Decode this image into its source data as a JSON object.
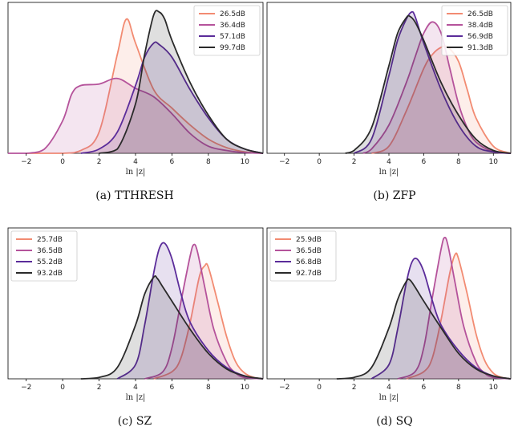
{
  "chart_data": [
    {
      "type": "area",
      "caption": "(a)  TTHRESH",
      "xlabel": "ln |z|",
      "xlim": [
        -3,
        11
      ],
      "xticks": [
        -2,
        0,
        2,
        4,
        6,
        8,
        10
      ],
      "legend_position": "top-right",
      "grid": false,
      "series": [
        {
          "name": "26.5dB",
          "color": "#f28b72",
          "x": [
            -2,
            0,
            1,
            2,
            3,
            3.5,
            4,
            5,
            6,
            7,
            8,
            9,
            10,
            11
          ],
          "y": [
            0.0,
            0.0,
            0.02,
            0.15,
            0.7,
            0.95,
            0.78,
            0.45,
            0.32,
            0.2,
            0.1,
            0.04,
            0.01,
            0.0
          ]
        },
        {
          "name": "36.4dB",
          "color": "#b5539b",
          "x": [
            -3,
            -2,
            -1,
            0,
            0.5,
            1,
            2,
            3,
            4,
            5,
            6,
            7,
            8,
            9,
            10,
            11
          ],
          "y": [
            0.0,
            0.0,
            0.03,
            0.23,
            0.42,
            0.48,
            0.49,
            0.53,
            0.46,
            0.4,
            0.28,
            0.14,
            0.05,
            0.02,
            0.005,
            0.0
          ]
        },
        {
          "name": "57.1dB",
          "color": "#5b2c9a",
          "x": [
            1,
            2,
            3,
            4,
            4.5,
            5,
            5.3,
            6,
            7,
            8,
            9,
            10,
            11
          ],
          "y": [
            0.0,
            0.03,
            0.15,
            0.48,
            0.68,
            0.78,
            0.77,
            0.68,
            0.45,
            0.25,
            0.1,
            0.03,
            0.0
          ]
        },
        {
          "name": "99.7dB",
          "color": "#2a2a2a",
          "x": [
            2,
            3,
            4,
            4.5,
            5,
            5.3,
            5.6,
            6,
            7,
            8,
            9,
            10,
            11
          ],
          "y": [
            0.0,
            0.03,
            0.35,
            0.7,
            0.98,
            1.0,
            0.95,
            0.8,
            0.5,
            0.27,
            0.1,
            0.03,
            0.0
          ]
        }
      ]
    },
    {
      "type": "area",
      "caption": "(b)  ZFP",
      "xlabel": "ln |z|",
      "xlim": [
        -3,
        11
      ],
      "xticks": [
        -2,
        0,
        2,
        4,
        6,
        8,
        10
      ],
      "legend_position": "top-right",
      "grid": false,
      "series": [
        {
          "name": "26.5dB",
          "color": "#f28b72",
          "x": [
            3,
            4,
            5,
            6,
            6.5,
            7,
            7.4,
            8,
            8.5,
            9,
            10,
            11
          ],
          "y": [
            0.0,
            0.05,
            0.3,
            0.6,
            0.7,
            0.75,
            0.75,
            0.65,
            0.45,
            0.25,
            0.05,
            0.0
          ]
        },
        {
          "name": "38.4dB",
          "color": "#b5539b",
          "x": [
            2.5,
            3,
            4,
            5,
            5.5,
            6,
            6.5,
            7,
            7.5,
            8,
            8.5,
            9,
            10,
            11
          ],
          "y": [
            0.0,
            0.03,
            0.2,
            0.5,
            0.68,
            0.85,
            0.93,
            0.85,
            0.6,
            0.35,
            0.18,
            0.08,
            0.01,
            0.0
          ]
        },
        {
          "name": "56.9dB",
          "color": "#5b2c9a",
          "x": [
            2,
            3,
            4,
            4.5,
            5,
            5.3,
            5.5,
            6,
            7,
            8,
            9,
            10,
            11
          ],
          "y": [
            0.0,
            0.1,
            0.55,
            0.8,
            0.95,
            1.0,
            0.97,
            0.78,
            0.45,
            0.2,
            0.05,
            0.01,
            0.0
          ]
        },
        {
          "name": "91.3dB",
          "color": "#2a2a2a",
          "x": [
            1.5,
            2,
            3,
            4,
            4.5,
            5,
            5.2,
            5.5,
            6,
            7,
            8,
            9,
            10,
            11
          ],
          "y": [
            0.0,
            0.02,
            0.18,
            0.62,
            0.85,
            0.96,
            0.97,
            0.93,
            0.8,
            0.5,
            0.27,
            0.1,
            0.02,
            0.0
          ]
        }
      ]
    },
    {
      "type": "area",
      "caption": "(c)  SZ",
      "xlabel": "ln |z|",
      "xlim": [
        -3,
        11
      ],
      "xticks": [
        -2,
        0,
        2,
        4,
        6,
        8,
        10
      ],
      "legend_position": "top-left",
      "grid": false,
      "series": [
        {
          "name": "25.7dB",
          "color": "#f28b72",
          "x": [
            5,
            6,
            6.5,
            7,
            7.5,
            7.8,
            8,
            8.5,
            9,
            9.5,
            10,
            10.5,
            11
          ],
          "y": [
            0.0,
            0.05,
            0.15,
            0.4,
            0.72,
            0.8,
            0.79,
            0.55,
            0.3,
            0.12,
            0.04,
            0.01,
            0.0
          ]
        },
        {
          "name": "36.5dB",
          "color": "#b5539b",
          "x": [
            4.5,
            5.5,
            6,
            6.5,
            7,
            7.2,
            7.4,
            7.8,
            8.3,
            9,
            9.5,
            10,
            11
          ],
          "y": [
            0.0,
            0.05,
            0.22,
            0.55,
            0.87,
            0.95,
            0.9,
            0.65,
            0.35,
            0.12,
            0.04,
            0.01,
            0.0
          ]
        },
        {
          "name": "55.2dB",
          "color": "#5b2c9a",
          "x": [
            3,
            4,
            4.5,
            5,
            5.3,
            5.6,
            6,
            6.5,
            7,
            8,
            9,
            10,
            11
          ],
          "y": [
            0.0,
            0.1,
            0.38,
            0.75,
            0.92,
            0.96,
            0.85,
            0.6,
            0.4,
            0.2,
            0.08,
            0.02,
            0.0
          ]
        },
        {
          "name": "93.2dB",
          "color": "#2a2a2a",
          "x": [
            1,
            2,
            3,
            4,
            4.5,
            5,
            5.2,
            5.5,
            6,
            7,
            8,
            9,
            10,
            11
          ],
          "y": [
            0.0,
            0.01,
            0.08,
            0.38,
            0.6,
            0.72,
            0.71,
            0.65,
            0.55,
            0.35,
            0.18,
            0.07,
            0.02,
            0.0
          ]
        }
      ]
    },
    {
      "type": "area",
      "caption": "(d)  SQ",
      "xlabel": "ln |z|",
      "xlim": [
        -3,
        11
      ],
      "xticks": [
        -2,
        0,
        2,
        4,
        6,
        8,
        10
      ],
      "legend_position": "top-left",
      "grid": false,
      "series": [
        {
          "name": "25.9dB",
          "color": "#f28b72",
          "x": [
            5,
            6,
            6.5,
            7,
            7.5,
            7.8,
            8,
            8.5,
            9,
            9.5,
            10,
            10.5,
            11
          ],
          "y": [
            0.0,
            0.05,
            0.15,
            0.42,
            0.75,
            0.88,
            0.85,
            0.6,
            0.32,
            0.13,
            0.04,
            0.01,
            0.0
          ]
        },
        {
          "name": "36.5dB",
          "color": "#b5539b",
          "x": [
            4.5,
            5.5,
            6,
            6.5,
            7,
            7.2,
            7.4,
            7.8,
            8.3,
            9,
            9.5,
            10,
            11
          ],
          "y": [
            0.0,
            0.05,
            0.22,
            0.58,
            0.92,
            1.0,
            0.94,
            0.68,
            0.37,
            0.12,
            0.04,
            0.01,
            0.0
          ]
        },
        {
          "name": "56.8dB",
          "color": "#5b2c9a",
          "x": [
            3,
            4,
            4.5,
            5,
            5.3,
            5.6,
            6,
            6.5,
            7,
            8,
            9,
            10,
            11
          ],
          "y": [
            0.0,
            0.1,
            0.35,
            0.68,
            0.82,
            0.85,
            0.76,
            0.55,
            0.38,
            0.2,
            0.08,
            0.02,
            0.0
          ]
        },
        {
          "name": "92.7dB",
          "color": "#2a2a2a",
          "x": [
            1,
            2,
            3,
            4,
            4.5,
            5,
            5.2,
            5.5,
            6,
            7,
            8,
            9,
            10,
            11
          ],
          "y": [
            0.0,
            0.01,
            0.08,
            0.36,
            0.56,
            0.69,
            0.7,
            0.65,
            0.55,
            0.36,
            0.18,
            0.07,
            0.02,
            0.0
          ]
        }
      ]
    }
  ]
}
